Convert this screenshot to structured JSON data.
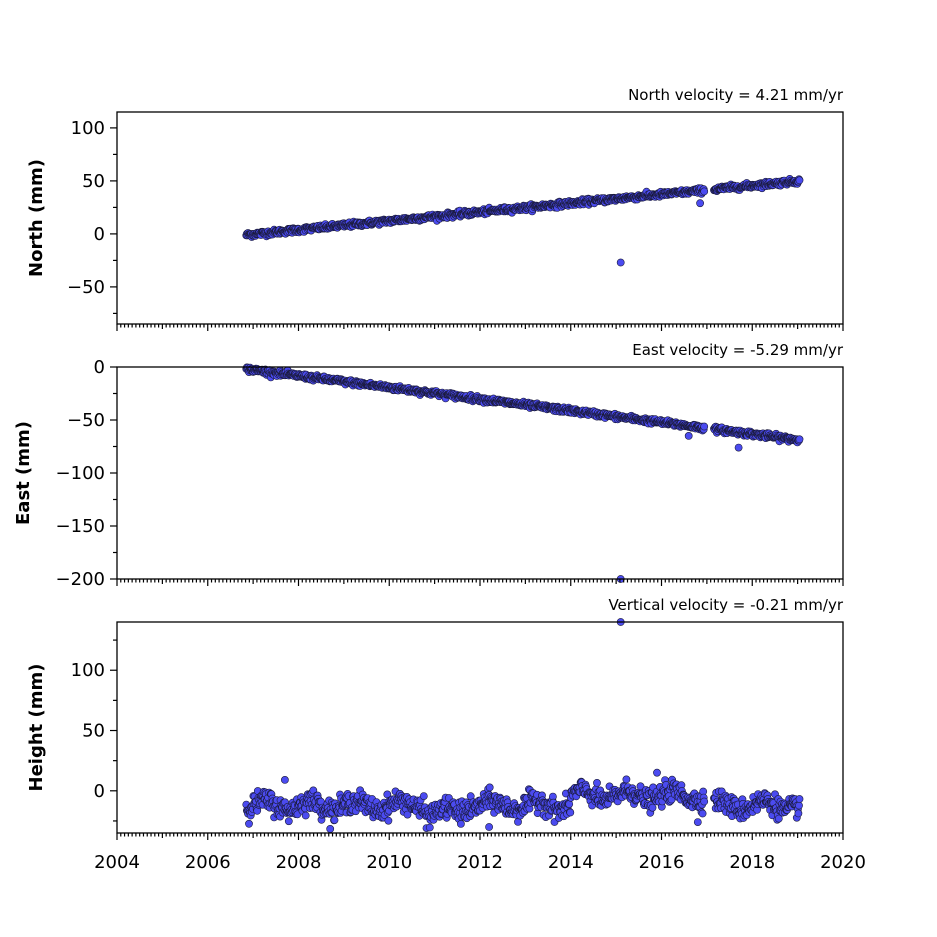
{
  "chart_data": [
    {
      "type": "scatter",
      "title": "North velocity = 4.21 mm/yr",
      "ylabel": "North (mm)",
      "xlabel": "",
      "xlim": [
        2004,
        2020
      ],
      "ylim": [
        -85,
        115
      ],
      "yticks": [
        -50,
        0,
        50,
        100
      ],
      "ytick_labels": [
        "−50",
        "0",
        "50",
        "100"
      ],
      "grid": false,
      "trend": {
        "start": [
          2006.85,
          -1
        ],
        "end": [
          2019.05,
          50
        ]
      },
      "noise": 2.0,
      "outliers": [
        [
          2015.1,
          -27
        ],
        [
          2016.85,
          29
        ]
      ],
      "marker_color": "#4b4bf0"
    },
    {
      "type": "scatter",
      "title": "East velocity = -5.29 mm/yr",
      "ylabel": "East (mm)",
      "xlabel": "",
      "xlim": [
        2004,
        2020
      ],
      "ylim": [
        -200,
        0
      ],
      "yticks": [
        -200,
        -150,
        -100,
        -50,
        0
      ],
      "ytick_labels": [
        "−200",
        "−150",
        "−100",
        "−50",
        "0"
      ],
      "grid": false,
      "trend": {
        "start": [
          2006.85,
          -2
        ],
        "end": [
          2019.05,
          -69
        ]
      },
      "noise": 2.0,
      "outliers": [
        [
          2015.1,
          -200
        ],
        [
          2017.7,
          -76
        ],
        [
          2016.6,
          -65
        ]
      ],
      "marker_color": "#4b4bf0"
    },
    {
      "type": "scatter",
      "title": "Vertical velocity = -0.21 mm/yr",
      "ylabel": "Height (mm)",
      "xlabel": "",
      "xlim": [
        2004,
        2020
      ],
      "ylim": [
        -35,
        140
      ],
      "yticks": [
        0,
        50,
        100
      ],
      "ytick_labels": [
        "0",
        "50",
        "100"
      ],
      "xticks": [
        2004,
        2006,
        2008,
        2010,
        2012,
        2014,
        2016,
        2018,
        2020
      ],
      "xtick_labels": [
        "2004",
        "2006",
        "2008",
        "2010",
        "2012",
        "2014",
        "2016",
        "2018",
        "2020"
      ],
      "grid": false,
      "trend": {
        "start": [
          2006.85,
          -12
        ],
        "end": [
          2019.05,
          -12
        ]
      },
      "noise": 7.0,
      "outliers": [
        [
          2015.1,
          140
        ],
        [
          2012.2,
          -30
        ],
        [
          2016.8,
          -26
        ],
        [
          2007.7,
          9
        ],
        [
          2015.9,
          15
        ]
      ],
      "marker_color": "#4b4bf0"
    }
  ],
  "data_gap": [
    2016.95,
    2017.15
  ]
}
